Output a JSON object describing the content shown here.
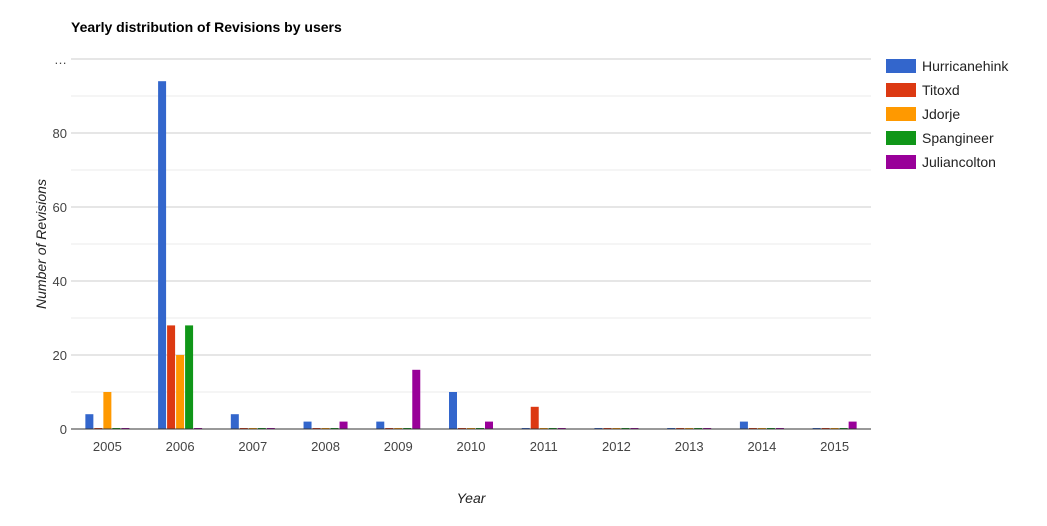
{
  "chart_data": {
    "type": "bar",
    "title": "Yearly distribution of Revisions by users",
    "xlabel": "Year",
    "ylabel": "Number of Revisions",
    "categories": [
      "2005",
      "2006",
      "2007",
      "2008",
      "2009",
      "2010",
      "2011",
      "2012",
      "2013",
      "2014",
      "2015"
    ],
    "series": [
      {
        "name": "Hurricanehink",
        "color": "#3366cc",
        "values": [
          4,
          94,
          4,
          2,
          2,
          10,
          0,
          0,
          0,
          2,
          0
        ]
      },
      {
        "name": "Titoxd",
        "color": "#dc3912",
        "values": [
          0,
          28,
          0,
          0,
          0,
          0,
          6,
          0,
          0,
          0,
          0
        ]
      },
      {
        "name": "Jdorje",
        "color": "#ff9900",
        "values": [
          10,
          20,
          0,
          0,
          0,
          0,
          0,
          0,
          0,
          0,
          0
        ]
      },
      {
        "name": "Spangineer",
        "color": "#109618",
        "values": [
          0,
          28,
          0,
          0,
          0,
          0,
          0,
          0,
          0,
          0,
          0
        ]
      },
      {
        "name": "Juliancolton",
        "color": "#990099",
        "values": [
          0,
          0,
          0,
          2,
          16,
          2,
          0,
          0,
          0,
          0,
          2
        ]
      }
    ],
    "ylim": [
      0,
      100
    ],
    "yticks": [
      0,
      20,
      40,
      60,
      80
    ],
    "ytick_top_label": "…",
    "grid": true,
    "legend_position": "right"
  }
}
